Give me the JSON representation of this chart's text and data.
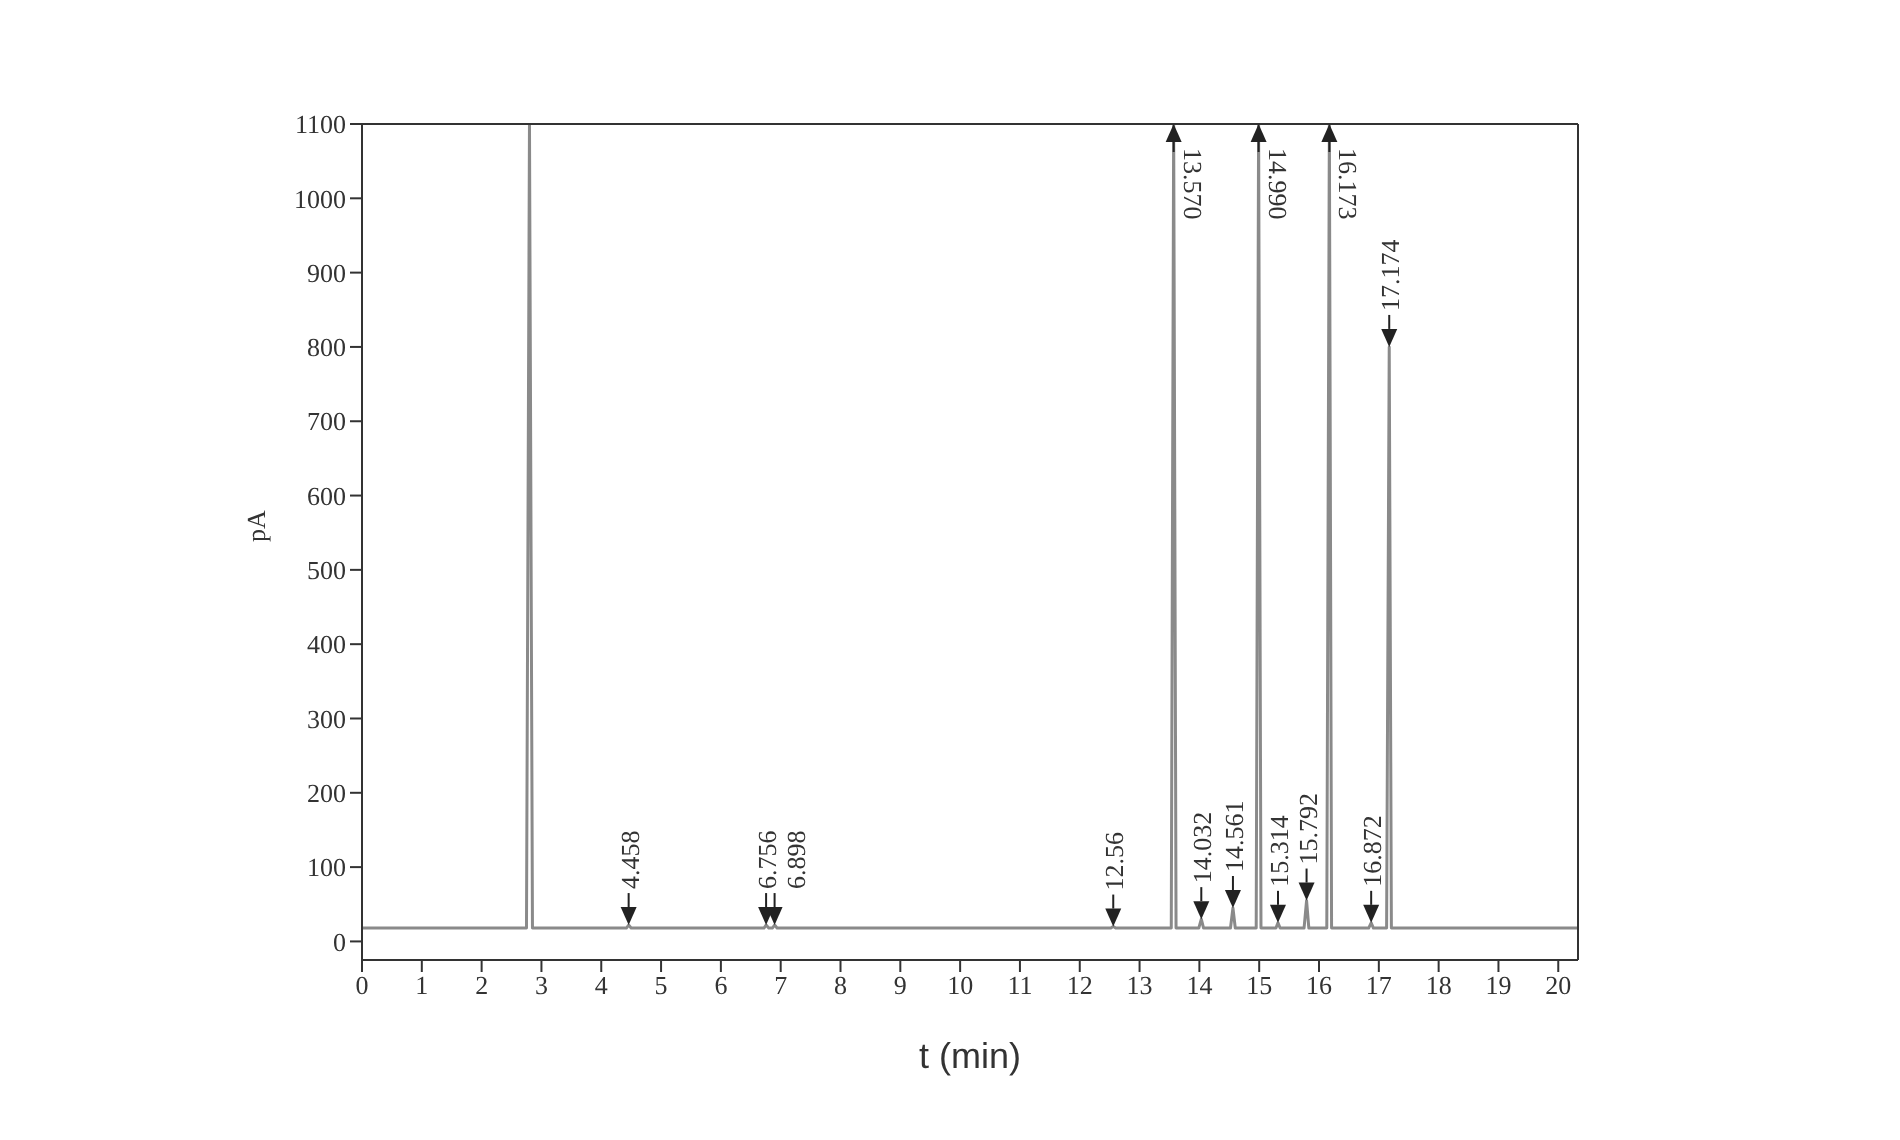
{
  "chart_data": {
    "type": "line",
    "xlabel": "t (min)",
    "ylabel": "pA",
    "xlim": [
      0,
      20.33
    ],
    "ylim": [
      -25,
      1100
    ],
    "xticks": [
      0,
      1,
      2,
      3,
      4,
      5,
      6,
      7,
      8,
      9,
      10,
      11,
      12,
      13,
      14,
      15,
      16,
      17,
      18,
      19,
      20
    ],
    "yticks": [
      0,
      100,
      200,
      300,
      400,
      500,
      600,
      700,
      800,
      900,
      1000,
      1100
    ],
    "grid": false,
    "legend": false,
    "marker": "none",
    "line_style": "solid",
    "series": [
      {
        "color": "#8a8a8a",
        "x": [
          0,
          2.75,
          2.8,
          2.85,
          4.42,
          4.458,
          4.5,
          6.72,
          6.756,
          6.8,
          6.86,
          6.898,
          6.94,
          12.52,
          12.56,
          12.6,
          13.53,
          13.57,
          13.61,
          13.99,
          14.032,
          14.07,
          14.52,
          14.561,
          14.6,
          14.95,
          14.99,
          15.03,
          15.28,
          15.314,
          15.35,
          15.75,
          15.792,
          15.83,
          16.13,
          16.173,
          16.21,
          16.83,
          16.872,
          16.91,
          17.13,
          17.174,
          17.21,
          20.33
        ],
        "values": [
          18,
          18,
          1100,
          18,
          18,
          22,
          18,
          18,
          22,
          18,
          18,
          22,
          18,
          18,
          20,
          18,
          18,
          1100,
          18,
          18,
          30,
          18,
          18,
          45,
          18,
          18,
          1100,
          18,
          18,
          25,
          18,
          18,
          55,
          18,
          18,
          1100,
          18,
          18,
          25,
          18,
          18,
          800,
          18,
          18
        ]
      }
    ],
    "annotations": [
      {
        "text": "4.458",
        "x": 4.458,
        "y": 22
      },
      {
        "text": "6.756",
        "x": 6.756,
        "y": 22
      },
      {
        "text": "6.898",
        "x": 6.898,
        "y": 22
      },
      {
        "text": "12.56",
        "x": 12.56,
        "y": 20
      },
      {
        "text": "13.570",
        "x": 13.57,
        "y": 1100
      },
      {
        "text": "14.032",
        "x": 14.032,
        "y": 30
      },
      {
        "text": "14.561",
        "x": 14.561,
        "y": 45
      },
      {
        "text": "14.990",
        "x": 14.99,
        "y": 1100
      },
      {
        "text": "15.314",
        "x": 15.314,
        "y": 25
      },
      {
        "text": "15.792",
        "x": 15.792,
        "y": 55
      },
      {
        "text": "16.173",
        "x": 16.173,
        "y": 1100
      },
      {
        "text": "16.872",
        "x": 16.872,
        "y": 25
      },
      {
        "text": "17.174",
        "x": 17.174,
        "y": 800
      }
    ]
  }
}
